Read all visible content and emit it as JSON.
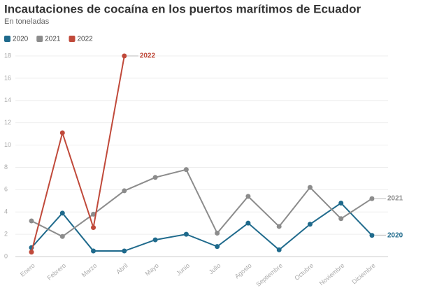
{
  "chart_data": {
    "type": "line",
    "title": "Incautaciones de cocaína en los puertos marítimos de Ecuador",
    "subtitle": "En toneladas",
    "categories": [
      "Enero",
      "Febrero",
      "Marzo",
      "Abril",
      "Mayo",
      "Junio",
      "Julio",
      "Agosto",
      "Septiembre",
      "Octubre",
      "Noviembre",
      "Diciembre"
    ],
    "series": [
      {
        "name": "2020",
        "color": "#1f6a8c",
        "values": [
          0.8,
          3.9,
          0.5,
          0.5,
          1.5,
          2.0,
          0.9,
          3.0,
          0.6,
          2.9,
          4.8,
          1.9
        ]
      },
      {
        "name": "2021",
        "color": "#8c8c8c",
        "values": [
          3.2,
          1.8,
          3.8,
          5.9,
          7.1,
          7.8,
          2.1,
          5.4,
          2.7,
          6.2,
          3.4,
          5.2
        ]
      },
      {
        "name": "2022",
        "color": "#c0493a",
        "values": [
          0.4,
          11.1,
          2.6,
          18.0,
          null,
          null,
          null,
          null,
          null,
          null,
          null,
          null
        ]
      }
    ],
    "ylim": [
      0,
      18
    ],
    "yticks": [
      0,
      2,
      4,
      6,
      8,
      10,
      12,
      14,
      16,
      18
    ],
    "grid": true,
    "legend": "top-left"
  }
}
